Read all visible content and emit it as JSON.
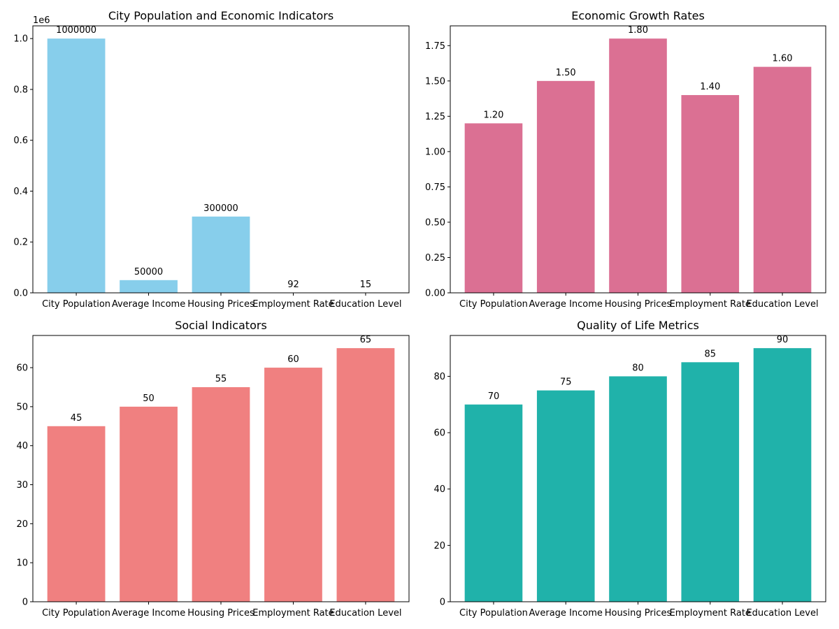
{
  "chart_data": [
    {
      "type": "bar",
      "title": "City Population and Economic Indicators",
      "categories": [
        "City Population",
        "Average Income",
        "Housing Prices",
        "Employment Rate",
        "Education Level"
      ],
      "values": [
        1000000,
        50000,
        300000,
        92,
        15
      ],
      "value_labels": [
        "1000000",
        "50000",
        "300000",
        "92",
        "15"
      ],
      "color": "#87CEEB",
      "ylim": [
        0,
        1050000
      ],
      "yticks": [
        0,
        200000,
        400000,
        600000,
        800000,
        1000000
      ],
      "ytick_labels": [
        "0.0",
        "0.2",
        "0.4",
        "0.6",
        "0.8",
        "1.0"
      ],
      "offset_text": "1e6",
      "xlabel": "",
      "ylabel": "",
      "grid": false
    },
    {
      "type": "bar",
      "title": "Economic Growth Rates",
      "categories": [
        "City Population",
        "Average Income",
        "Housing Prices",
        "Employment Rate",
        "Education Level"
      ],
      "values": [
        1.2,
        1.5,
        1.8,
        1.4,
        1.6
      ],
      "value_labels": [
        "1.20",
        "1.50",
        "1.80",
        "1.40",
        "1.60"
      ],
      "color": "#DB7093",
      "ylim": [
        0,
        1.89
      ],
      "yticks": [
        0,
        0.25,
        0.5,
        0.75,
        1.0,
        1.25,
        1.5,
        1.75
      ],
      "ytick_labels": [
        "0.00",
        "0.25",
        "0.50",
        "0.75",
        "1.00",
        "1.25",
        "1.50",
        "1.75"
      ],
      "xlabel": "",
      "ylabel": "",
      "grid": false
    },
    {
      "type": "bar",
      "title": "Social Indicators",
      "categories": [
        "City Population",
        "Average Income",
        "Housing Prices",
        "Employment Rate",
        "Education Level"
      ],
      "values": [
        45,
        50,
        55,
        60,
        65
      ],
      "value_labels": [
        "45",
        "50",
        "55",
        "60",
        "65"
      ],
      "color": "#F08080",
      "ylim": [
        0,
        68.25
      ],
      "yticks": [
        0,
        10,
        20,
        30,
        40,
        50,
        60
      ],
      "ytick_labels": [
        "0",
        "10",
        "20",
        "30",
        "40",
        "50",
        "60"
      ],
      "xlabel": "",
      "ylabel": "",
      "grid": false
    },
    {
      "type": "bar",
      "title": "Quality of Life Metrics",
      "categories": [
        "City Population",
        "Average Income",
        "Housing Prices",
        "Employment Rate",
        "Education Level"
      ],
      "values": [
        70,
        75,
        80,
        85,
        90
      ],
      "value_labels": [
        "70",
        "75",
        "80",
        "85",
        "90"
      ],
      "color": "#20B2AA",
      "ylim": [
        0,
        94.5
      ],
      "yticks": [
        0,
        20,
        40,
        60,
        80
      ],
      "ytick_labels": [
        "0",
        "20",
        "40",
        "60",
        "80"
      ],
      "xlabel": "",
      "ylabel": "",
      "grid": false
    }
  ]
}
